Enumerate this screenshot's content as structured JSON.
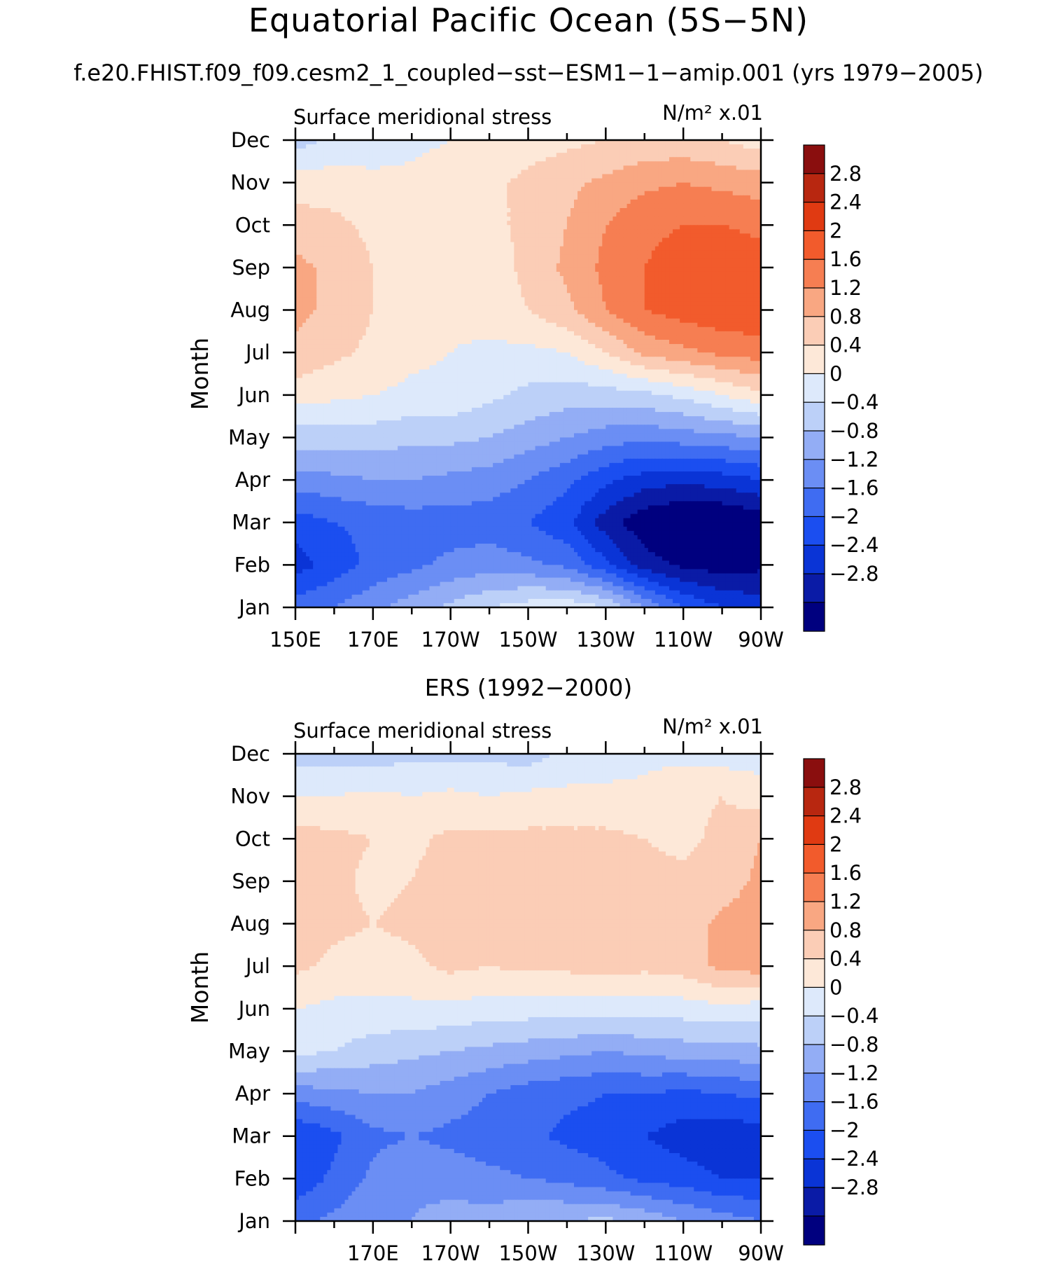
{
  "figure": {
    "title": "Equatorial Pacific Ocean (5S−5N)",
    "subtitle": "f.e20.FHIST.f09_f09.cesm2_1_coupled−sst−ESM1−1−amip.001 (yrs 1979−2005)"
  },
  "chart_data": [
    {
      "type": "heatmap",
      "panel_title": "",
      "variable_label": "Surface meridional stress",
      "units_label": "N/m² x.01",
      "ylabel": "Month",
      "xlabel": "",
      "x_lon": [
        150,
        170,
        190,
        210,
        230,
        250,
        270
      ],
      "x_ticklabels": [
        "150E",
        "170E",
        "170W",
        "150W",
        "130W",
        "110W",
        "90W"
      ],
      "y_ticklabels": [
        "Jan",
        "Feb",
        "Mar",
        "Apr",
        "May",
        "Jun",
        "Jul",
        "Aug",
        "Sep",
        "Oct",
        "Nov",
        "Dec"
      ],
      "colorbar": {
        "levels": [
          -3.2,
          -2.8,
          -2.4,
          -2.0,
          -1.6,
          -1.2,
          -0.8,
          -0.4,
          0,
          0.4,
          0.8,
          1.2,
          1.6,
          2.0,
          2.4,
          2.8,
          3.2
        ],
        "colors": [
          "#00007f",
          "#0a1ba6",
          "#0a34d6",
          "#1b4ef0",
          "#3f6cf2",
          "#6b8ef4",
          "#93adf5",
          "#bcd0f8",
          "#dde9fb",
          "#fde8d8",
          "#fbcdb6",
          "#f9a782",
          "#f67e52",
          "#f25b2c",
          "#e03a12",
          "#b82710",
          "#8a0e0e"
        ],
        "ticklabels": [
          "−2.8",
          "−2.4",
          "−2",
          "−1.6",
          "−1.2",
          "−0.8",
          "−0.4",
          "0",
          "0.4",
          "0.8",
          "1.2",
          "1.6",
          "2",
          "2.4",
          "2.8"
        ]
      },
      "values_lon": [
        150,
        160,
        170,
        180,
        190,
        200,
        210,
        220,
        230,
        240,
        250,
        260,
        270
      ],
      "values_month": [
        "Jan",
        "Feb",
        "Mar",
        "Apr",
        "May",
        "Jun",
        "Jul",
        "Aug",
        "Sep",
        "Oct",
        "Nov",
        "Dec"
      ],
      "values": [
        [
          -1.4,
          -1.2,
          -0.9,
          -0.6,
          -0.3,
          0.0,
          0.2,
          0.3,
          0.0,
          -0.8,
          -1.6,
          -2.0,
          -2.2
        ],
        [
          -2.2,
          -1.8,
          -1.5,
          -1.3,
          -1.1,
          -1.0,
          -1.1,
          -1.3,
          -1.9,
          -2.6,
          -2.9,
          -3.0,
          -2.9
        ],
        [
          -1.8,
          -1.6,
          -1.5,
          -1.4,
          -1.4,
          -1.4,
          -1.6,
          -1.9,
          -2.6,
          -3.1,
          -3.3,
          -3.3,
          -3.1
        ],
        [
          -1.0,
          -0.9,
          -0.8,
          -0.8,
          -0.9,
          -1.0,
          -1.2,
          -1.5,
          -1.9,
          -2.2,
          -2.3,
          -2.2,
          -2.0
        ],
        [
          -0.2,
          -0.2,
          -0.2,
          -0.3,
          -0.3,
          -0.4,
          -0.6,
          -0.8,
          -1.0,
          -1.1,
          -1.0,
          -0.9,
          -0.8
        ],
        [
          0.6,
          0.5,
          0.4,
          0.3,
          0.3,
          0.1,
          -0.1,
          -0.2,
          -0.2,
          -0.1,
          0.1,
          0.4,
          0.7
        ],
        [
          1.1,
          0.9,
          0.7,
          0.5,
          0.4,
          0.3,
          0.3,
          0.4,
          0.8,
          1.3,
          1.5,
          1.7,
          1.8
        ],
        [
          1.3,
          1.1,
          0.8,
          0.6,
          0.5,
          0.6,
          0.8,
          1.1,
          1.6,
          2.0,
          2.2,
          2.3,
          2.3
        ],
        [
          1.3,
          1.1,
          0.8,
          0.6,
          0.5,
          0.6,
          0.9,
          1.3,
          1.7,
          2.0,
          2.2,
          2.3,
          2.2
        ],
        [
          1.0,
          0.9,
          0.7,
          0.6,
          0.6,
          0.7,
          0.9,
          1.2,
          1.6,
          1.9,
          2.0,
          2.0,
          1.9
        ],
        [
          0.6,
          0.6,
          0.5,
          0.5,
          0.6,
          0.7,
          0.9,
          1.1,
          1.3,
          1.5,
          1.6,
          1.5,
          1.4
        ],
        [
          -0.2,
          0.1,
          0.2,
          0.3,
          0.4,
          0.5,
          0.6,
          0.7,
          0.8,
          0.9,
          0.9,
          0.8,
          0.6
        ]
      ]
    },
    {
      "type": "heatmap",
      "panel_title": "ERS (1992−2000)",
      "variable_label": "Surface meridional stress",
      "units_label": "N/m² x.01",
      "ylabel": "Month",
      "xlabel": "",
      "x_lon": [
        170,
        190,
        210,
        230,
        250,
        270
      ],
      "x_ticklabels": [
        "170E",
        "170W",
        "150W",
        "130W",
        "110W",
        "90W"
      ],
      "y_ticklabels": [
        "Jan",
        "Feb",
        "Mar",
        "Apr",
        "May",
        "Jun",
        "Jul",
        "Aug",
        "Sep",
        "Oct",
        "Nov",
        "Dec"
      ],
      "colorbar": {
        "levels": [
          -3.2,
          -2.8,
          -2.4,
          -2.0,
          -1.6,
          -1.2,
          -0.8,
          -0.4,
          0,
          0.4,
          0.8,
          1.2,
          1.6,
          2.0,
          2.4,
          2.8,
          3.2
        ],
        "colors": [
          "#00007f",
          "#0a1ba6",
          "#0a34d6",
          "#1b4ef0",
          "#3f6cf2",
          "#6b8ef4",
          "#93adf5",
          "#bcd0f8",
          "#dde9fb",
          "#fde8d8",
          "#fbcdb6",
          "#f9a782",
          "#f67e52",
          "#f25b2c",
          "#e03a12",
          "#b82710",
          "#8a0e0e"
        ],
        "ticklabels": [
          "−2.8",
          "−2.4",
          "−2",
          "−1.6",
          "−1.2",
          "−0.8",
          "−0.4",
          "0",
          "0.4",
          "0.8",
          "1.2",
          "1.6",
          "2",
          "2.4",
          "2.8"
        ]
      },
      "values_lon": [
        150,
        160,
        170,
        180,
        190,
        200,
        210,
        220,
        230,
        240,
        250,
        260,
        270
      ],
      "values_month": [
        "Jan",
        "Feb",
        "Mar",
        "Apr",
        "May",
        "Jun",
        "Jul",
        "Aug",
        "Sep",
        "Oct",
        "Nov",
        "Dec"
      ],
      "values": [
        [
          -1.3,
          -1.1,
          -0.9,
          -0.8,
          -0.6,
          -0.6,
          -0.4,
          -0.4,
          -0.3,
          -0.5,
          -0.8,
          -1.0,
          -1.2
        ],
        [
          -1.9,
          -1.5,
          -1.1,
          -0.9,
          -1.0,
          -1.1,
          -1.2,
          -1.3,
          -1.5,
          -1.7,
          -1.8,
          -2.0,
          -2.0
        ],
        [
          -2.0,
          -1.7,
          -1.3,
          -1.2,
          -1.3,
          -1.4,
          -1.5,
          -1.7,
          -1.8,
          -2.0,
          -2.2,
          -2.3,
          -2.2
        ],
        [
          -1.0,
          -0.9,
          -0.8,
          -0.8,
          -1.0,
          -1.2,
          -1.4,
          -1.5,
          -1.6,
          -1.6,
          -1.7,
          -1.6,
          -1.5
        ],
        [
          0.1,
          0.0,
          -0.2,
          -0.3,
          -0.4,
          -0.5,
          -0.6,
          -0.7,
          -0.8,
          -0.7,
          -0.6,
          -0.6,
          -0.5
        ],
        [
          0.4,
          0.3,
          0.3,
          0.3,
          0.3,
          0.2,
          0.2,
          0.2,
          0.2,
          0.2,
          0.2,
          0.3,
          0.2
        ],
        [
          0.9,
          0.7,
          0.6,
          0.7,
          0.9,
          0.8,
          0.9,
          0.9,
          1.0,
          0.9,
          1.0,
          1.3,
          1.4
        ],
        [
          1.1,
          0.9,
          0.8,
          0.9,
          1.0,
          1.0,
          1.0,
          1.0,
          1.0,
          1.0,
          1.0,
          1.3,
          1.4
        ],
        [
          1.2,
          0.9,
          0.7,
          0.8,
          1.0,
          0.9,
          1.0,
          1.0,
          1.0,
          0.9,
          0.9,
          1.0,
          1.3
        ],
        [
          1.0,
          0.9,
          0.8,
          0.7,
          0.9,
          0.9,
          0.9,
          0.9,
          0.9,
          0.8,
          0.7,
          0.9,
          1.2
        ],
        [
          0.4,
          0.4,
          0.5,
          0.4,
          0.5,
          0.4,
          0.5,
          0.5,
          0.5,
          0.5,
          0.7,
          0.8,
          0.6
        ],
        [
          -0.2,
          -0.2,
          -0.2,
          -0.1,
          -0.1,
          -0.1,
          -0.2,
          0.1,
          0.2,
          0.3,
          0.3,
          0.2,
          0.2
        ]
      ]
    }
  ]
}
